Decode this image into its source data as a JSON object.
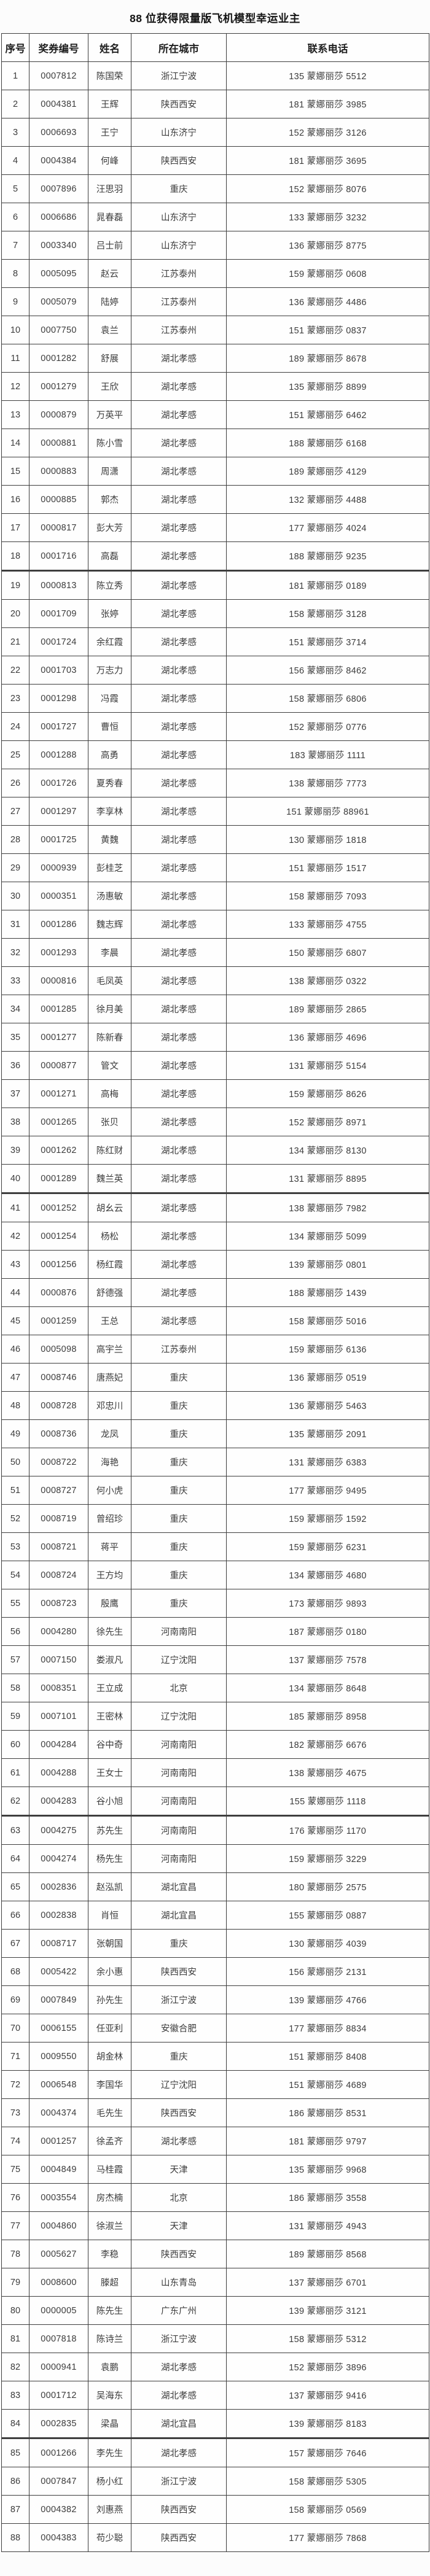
{
  "title": "88 位获得限量版飞机模型幸运业主",
  "table": {
    "headers": [
      "序号",
      "奖券编号",
      "姓名",
      "所在城市",
      "联系电话"
    ],
    "rows": [
      [
        "1",
        "0007812",
        "陈国荣",
        "浙江宁波",
        "135 蒙娜丽莎 5512"
      ],
      [
        "2",
        "0004381",
        "王辉",
        "陕西西安",
        "181 蒙娜丽莎 3985"
      ],
      [
        "3",
        "0006693",
        "王宁",
        "山东济宁",
        "152 蒙娜丽莎 3126"
      ],
      [
        "4",
        "0004384",
        "何峰",
        "陕西西安",
        "181 蒙娜丽莎 3695"
      ],
      [
        "5",
        "0007896",
        "汪思羽",
        "重庆",
        "152 蒙娜丽莎 8076"
      ],
      [
        "6",
        "0006686",
        "晁春磊",
        "山东济宁",
        "133 蒙娜丽莎 3232"
      ],
      [
        "7",
        "0003340",
        "吕士前",
        "山东济宁",
        "136 蒙娜丽莎 8775"
      ],
      [
        "8",
        "0005095",
        "赵云",
        "江苏泰州",
        "159 蒙娜丽莎 0608"
      ],
      [
        "9",
        "0005079",
        "陆婷",
        "江苏泰州",
        "136 蒙娜丽莎 4486"
      ],
      [
        "10",
        "0007750",
        "袁兰",
        "江苏泰州",
        "151 蒙娜丽莎 0837"
      ],
      [
        "11",
        "0001282",
        "舒展",
        "湖北孝感",
        "189 蒙娜丽莎 8678"
      ],
      [
        "12",
        "0001279",
        "王欣",
        "湖北孝感",
        "135 蒙娜丽莎 8899"
      ],
      [
        "13",
        "0000879",
        "万英平",
        "湖北孝感",
        "151 蒙娜丽莎 6462"
      ],
      [
        "14",
        "0000881",
        "陈小雪",
        "湖北孝感",
        "188 蒙娜丽莎 6168"
      ],
      [
        "15",
        "0000883",
        "周潇",
        "湖北孝感",
        "189 蒙娜丽莎 4129"
      ],
      [
        "16",
        "0000885",
        "郭杰",
        "湖北孝感",
        "132 蒙娜丽莎 4488"
      ],
      [
        "17",
        "0000817",
        "彭大芳",
        "湖北孝感",
        "177 蒙娜丽莎 4024"
      ],
      [
        "18",
        "0001716",
        "高磊",
        "湖北孝感",
        "188 蒙娜丽莎 9235"
      ],
      [
        "19",
        "0000813",
        "陈立秀",
        "湖北孝感",
        "181 蒙娜丽莎 0189"
      ],
      [
        "20",
        "0001709",
        "张婷",
        "湖北孝感",
        "158 蒙娜丽莎 3128"
      ],
      [
        "21",
        "0001724",
        "余红霞",
        "湖北孝感",
        "151 蒙娜丽莎 3714"
      ],
      [
        "22",
        "0001703",
        "万志力",
        "湖北孝感",
        "156 蒙娜丽莎 8462"
      ],
      [
        "23",
        "0001298",
        "冯霞",
        "湖北孝感",
        "158 蒙娜丽莎 6806"
      ],
      [
        "24",
        "0001727",
        "曹恒",
        "湖北孝感",
        "152 蒙娜丽莎 0776"
      ],
      [
        "25",
        "0001288",
        "高勇",
        "湖北孝感",
        "183 蒙娜丽莎 1111"
      ],
      [
        "26",
        "0001726",
        "夏秀春",
        "湖北孝感",
        "138 蒙娜丽莎 7773"
      ],
      [
        "27",
        "0001297",
        "李享林",
        "湖北孝感",
        "151 蒙娜丽莎 88961"
      ],
      [
        "28",
        "0001725",
        "黄魏",
        "湖北孝感",
        "130 蒙娜丽莎 1818"
      ],
      [
        "29",
        "0000939",
        "彭桂芝",
        "湖北孝感",
        "151 蒙娜丽莎 1517"
      ],
      [
        "30",
        "0000351",
        "汤惠敏",
        "湖北孝感",
        "158 蒙娜丽莎 7093"
      ],
      [
        "31",
        "0001286",
        "魏志辉",
        "湖北孝感",
        "133 蒙娜丽莎 4755"
      ],
      [
        "32",
        "0001293",
        "李晨",
        "湖北孝感",
        "150 蒙娜丽莎 6807"
      ],
      [
        "33",
        "0000816",
        "毛凤英",
        "湖北孝感",
        "138 蒙娜丽莎 0322"
      ],
      [
        "34",
        "0001285",
        "徐月美",
        "湖北孝感",
        "189 蒙娜丽莎 2865"
      ],
      [
        "35",
        "0001277",
        "陈新春",
        "湖北孝感",
        "136 蒙娜丽莎 4696"
      ],
      [
        "36",
        "0000877",
        "管文",
        "湖北孝感",
        "131 蒙娜丽莎 5154"
      ],
      [
        "37",
        "0001271",
        "高梅",
        "湖北孝感",
        "159 蒙娜丽莎 8626"
      ],
      [
        "38",
        "0001265",
        "张贝",
        "湖北孝感",
        "152 蒙娜丽莎 8971"
      ],
      [
        "39",
        "0001262",
        "陈红财",
        "湖北孝感",
        "134 蒙娜丽莎 8130"
      ],
      [
        "40",
        "0001289",
        "魏兰英",
        "湖北孝感",
        "131 蒙娜丽莎 8895"
      ],
      [
        "41",
        "0001252",
        "胡幺云",
        "湖北孝感",
        "138 蒙娜丽莎 7982"
      ],
      [
        "42",
        "0001254",
        "杨松",
        "湖北孝感",
        "134 蒙娜丽莎 5099"
      ],
      [
        "43",
        "0001256",
        "杨红霞",
        "湖北孝感",
        "139 蒙娜丽莎 0801"
      ],
      [
        "44",
        "0000876",
        "舒德强",
        "湖北孝感",
        "188 蒙娜丽莎 1439"
      ],
      [
        "45",
        "0001259",
        "王总",
        "湖北孝感",
        "158 蒙娜丽莎 5016"
      ],
      [
        "46",
        "0005098",
        "高宇兰",
        "江苏泰州",
        "159 蒙娜丽莎 6136"
      ],
      [
        "47",
        "0008746",
        "唐燕妃",
        "重庆",
        "136 蒙娜丽莎 0519"
      ],
      [
        "48",
        "0008728",
        "邓忠川",
        "重庆",
        "136 蒙娜丽莎 5463"
      ],
      [
        "49",
        "0008736",
        "龙凤",
        "重庆",
        "135 蒙娜丽莎 2091"
      ],
      [
        "50",
        "0008722",
        "海艳",
        "重庆",
        "131 蒙娜丽莎 6383"
      ],
      [
        "51",
        "0008727",
        "何小虎",
        "重庆",
        "177 蒙娜丽莎 9495"
      ],
      [
        "52",
        "0008719",
        "曾绍珍",
        "重庆",
        "159 蒙娜丽莎 1592"
      ],
      [
        "53",
        "0008721",
        "蒋平",
        "重庆",
        "159 蒙娜丽莎 6231"
      ],
      [
        "54",
        "0008724",
        "王方均",
        "重庆",
        "134 蒙娜丽莎 4680"
      ],
      [
        "55",
        "0008723",
        "殷鹰",
        "重庆",
        "173 蒙娜丽莎 9893"
      ],
      [
        "56",
        "0004280",
        "徐先生",
        "河南南阳",
        "187 蒙娜丽莎 0180"
      ],
      [
        "57",
        "0007150",
        "娄淑凡",
        "辽宁沈阳",
        "137 蒙娜丽莎 7578"
      ],
      [
        "58",
        "0008351",
        "王立成",
        "北京",
        "134 蒙娜丽莎 8648"
      ],
      [
        "59",
        "0007101",
        "王密林",
        "辽宁沈阳",
        "185 蒙娜丽莎 8958"
      ],
      [
        "60",
        "0004284",
        "谷中奇",
        "河南南阳",
        "182 蒙娜丽莎 6676"
      ],
      [
        "61",
        "0004288",
        "王女士",
        "河南南阳",
        "138 蒙娜丽莎 4675"
      ],
      [
        "62",
        "0004283",
        "谷小旭",
        "河南南阳",
        "155 蒙娜丽莎 1118"
      ],
      [
        "63",
        "0004275",
        "苏先生",
        "河南南阳",
        "176 蒙娜丽莎 1170"
      ],
      [
        "64",
        "0004274",
        "杨先生",
        "河南南阳",
        "159 蒙娜丽莎 3229"
      ],
      [
        "65",
        "0002836",
        "赵泓凯",
        "湖北宜昌",
        "180 蒙娜丽莎 2575"
      ],
      [
        "66",
        "0002838",
        "肖恒",
        "湖北宜昌",
        "155 蒙娜丽莎 0887"
      ],
      [
        "67",
        "0008717",
        "张朝国",
        "重庆",
        "130 蒙娜丽莎 4039"
      ],
      [
        "68",
        "0005422",
        "余小惠",
        "陕西西安",
        "156 蒙娜丽莎 2131"
      ],
      [
        "69",
        "0007849",
        "孙先生",
        "浙江宁波",
        "139 蒙娜丽莎 4766"
      ],
      [
        "70",
        "0006155",
        "任亚利",
        "安徽合肥",
        "177 蒙娜丽莎 8834"
      ],
      [
        "71",
        "0009550",
        "胡金林",
        "重庆",
        "151 蒙娜丽莎 8408"
      ],
      [
        "72",
        "0006548",
        "李国华",
        "辽宁沈阳",
        "151 蒙娜丽莎 4689"
      ],
      [
        "73",
        "0004374",
        "毛先生",
        "陕西西安",
        "186 蒙娜丽莎 8531"
      ],
      [
        "74",
        "0001257",
        "徐孟齐",
        "湖北孝感",
        "181 蒙娜丽莎 9797"
      ],
      [
        "75",
        "0004849",
        "马桂霞",
        "天津",
        "135 蒙娜丽莎 9968"
      ],
      [
        "76",
        "0003554",
        "房杰楠",
        "北京",
        "186 蒙娜丽莎 3558"
      ],
      [
        "77",
        "0004860",
        "徐淑兰",
        "天津",
        "131 蒙娜丽莎 4943"
      ],
      [
        "78",
        "0005627",
        "李稳",
        "陕西西安",
        "189 蒙娜丽莎 8568"
      ],
      [
        "79",
        "0008600",
        "滕超",
        "山东青岛",
        "137 蒙娜丽莎 6701"
      ],
      [
        "80",
        "0000005",
        "陈先生",
        "广东广州",
        "139 蒙娜丽莎 3121"
      ],
      [
        "81",
        "0007818",
        "陈诗兰",
        "浙江宁波",
        "158 蒙娜丽莎 5312"
      ],
      [
        "82",
        "0000941",
        "袁鹏",
        "湖北孝感",
        "152 蒙娜丽莎 3896"
      ],
      [
        "83",
        "0001712",
        "吴海东",
        "湖北孝感",
        "137 蒙娜丽莎 9416"
      ],
      [
        "84",
        "0002835",
        "梁晶",
        "湖北宜昌",
        "139 蒙娜丽莎 8183"
      ],
      [
        "85",
        "0001266",
        "李先生",
        "湖北孝感",
        "157 蒙娜丽莎 7646"
      ],
      [
        "86",
        "0007847",
        "杨小红",
        "浙江宁波",
        "158 蒙娜丽莎 5305"
      ],
      [
        "87",
        "0004382",
        "刘惠燕",
        "陕西西安",
        "158 蒙娜丽莎 0569"
      ],
      [
        "88",
        "0004383",
        "苟少聪",
        "陕西西安",
        "177 蒙娜丽莎 7868"
      ]
    ]
  },
  "colors": {
    "page_background": "#fcfcfc",
    "cell_background": "#fefefe",
    "border": "#3e3e3e",
    "title_text": "#141414",
    "body_text": "#3c3c3c"
  }
}
